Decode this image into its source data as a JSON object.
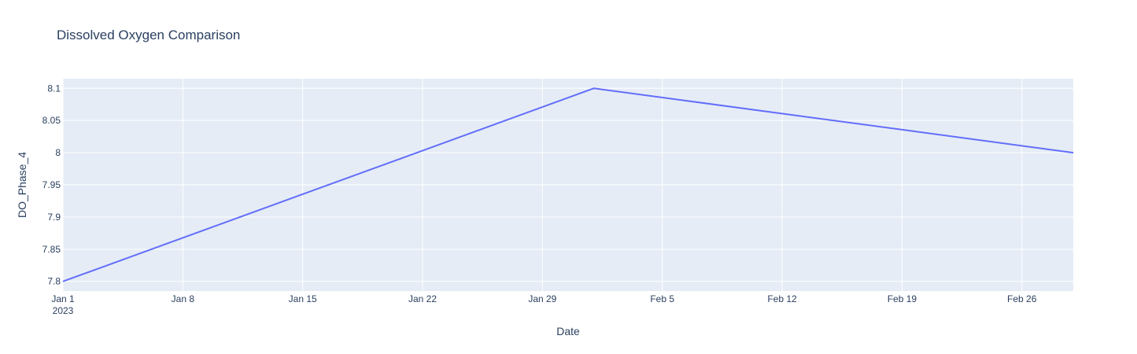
{
  "chart_data": {
    "type": "line",
    "title": "Dissolved Oxygen Comparison",
    "xlabel": "Date",
    "ylabel": "DO_Phase_4",
    "xlim": [
      "2023-01-01",
      "2023-03-01"
    ],
    "ylim": [
      7.785,
      8.115
    ],
    "x_ticks": [
      {
        "date": "2023-01-01",
        "label": "Jan 1",
        "sublabel": "2023"
      },
      {
        "date": "2023-01-08",
        "label": "Jan 8"
      },
      {
        "date": "2023-01-15",
        "label": "Jan 15"
      },
      {
        "date": "2023-01-22",
        "label": "Jan 22"
      },
      {
        "date": "2023-01-29",
        "label": "Jan 29"
      },
      {
        "date": "2023-02-05",
        "label": "Feb 5"
      },
      {
        "date": "2023-02-12",
        "label": "Feb 12"
      },
      {
        "date": "2023-02-19",
        "label": "Feb 19"
      },
      {
        "date": "2023-02-26",
        "label": "Feb 26"
      }
    ],
    "y_ticks": [
      {
        "value": 7.8,
        "label": "7.8"
      },
      {
        "value": 7.85,
        "label": "7.85"
      },
      {
        "value": 7.9,
        "label": "7.9"
      },
      {
        "value": 7.95,
        "label": "7.95"
      },
      {
        "value": 8.0,
        "label": "8"
      },
      {
        "value": 8.05,
        "label": "8.05"
      },
      {
        "value": 8.1,
        "label": "8.1"
      }
    ],
    "grid": true,
    "series": [
      {
        "color": "#636efa",
        "points": [
          {
            "x": "2023-01-01",
            "y": 7.8
          },
          {
            "x": "2023-02-01",
            "y": 8.1
          },
          {
            "x": "2023-03-01",
            "y": 8.0
          }
        ]
      }
    ],
    "colors": {
      "plot_background": "#e5ecf6",
      "grid": "#ffffff",
      "text": "#2a3f5f"
    }
  }
}
